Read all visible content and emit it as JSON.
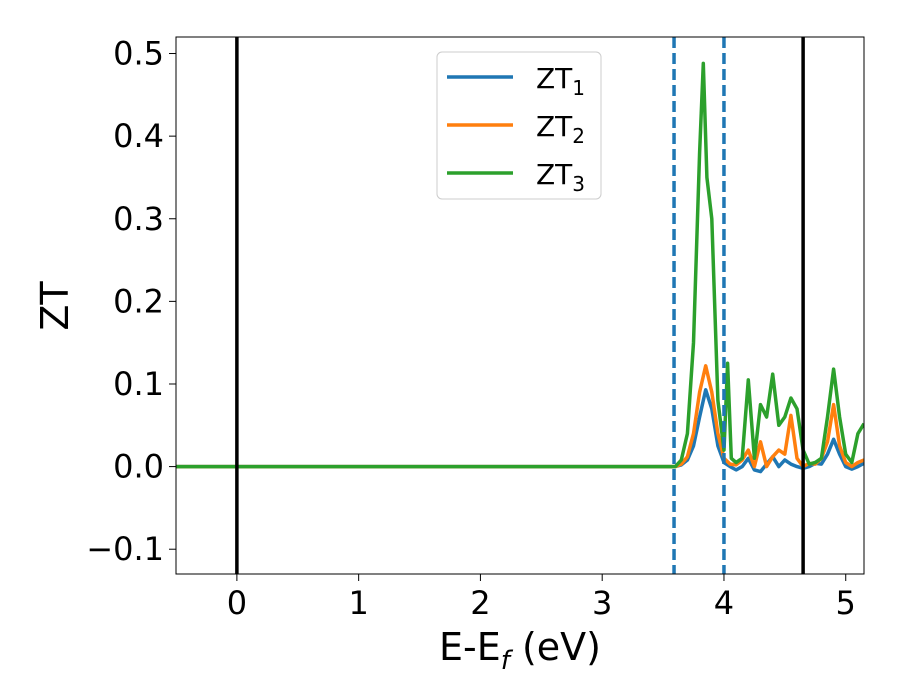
{
  "chart_data": {
    "type": "line",
    "title": "",
    "xlabel": "E-E",
    "xlabel_sub": "f",
    "xlabel_unit": " (eV)",
    "ylabel": "ZT",
    "xlim": [
      -0.5,
      5.15
    ],
    "ylim": [
      -0.13,
      0.52
    ],
    "xticks": [
      0,
      1,
      2,
      3,
      4,
      5
    ],
    "yticks": [
      -0.1,
      0.0,
      0.1,
      0.2,
      0.3,
      0.4,
      0.5
    ],
    "ytick_labels": [
      "−0.1",
      "0.0",
      "0.1",
      "0.2",
      "0.3",
      "0.4",
      "0.5"
    ],
    "grid": false,
    "legend_position": "top-center",
    "vlines": [
      {
        "x": 0.0,
        "color": "#000000",
        "style": "solid"
      },
      {
        "x": 4.65,
        "color": "#000000",
        "style": "solid"
      },
      {
        "x": 3.59,
        "color": "#1f77b4",
        "style": "dashed"
      },
      {
        "x": 4.0,
        "color": "#1f77b4",
        "style": "dashed"
      }
    ],
    "series": [
      {
        "name": "ZT",
        "name_sub": "1",
        "color": "#1f77b4",
        "x": [
          -0.5,
          3.5,
          3.6,
          3.65,
          3.7,
          3.75,
          3.8,
          3.85,
          3.9,
          3.95,
          4.0,
          4.05,
          4.1,
          4.15,
          4.2,
          4.25,
          4.3,
          4.35,
          4.4,
          4.45,
          4.5,
          4.55,
          4.6,
          4.65,
          4.7,
          4.75,
          4.8,
          4.85,
          4.9,
          4.95,
          5.0,
          5.05,
          5.1,
          5.15
        ],
        "y": [
          0.0,
          0.0,
          0.0,
          0.002,
          0.008,
          0.025,
          0.06,
          0.093,
          0.07,
          0.025,
          0.005,
          0.0,
          -0.004,
          0.0,
          0.01,
          -0.004,
          -0.006,
          0.003,
          0.012,
          0.0,
          0.008,
          0.003,
          0.0,
          -0.002,
          0.0,
          0.004,
          0.003,
          0.015,
          0.033,
          0.015,
          0.0,
          -0.003,
          0.0,
          0.004
        ]
      },
      {
        "name": "ZT",
        "name_sub": "2",
        "color": "#ff7f0e",
        "x": [
          -0.5,
          3.5,
          3.6,
          3.65,
          3.7,
          3.75,
          3.8,
          3.85,
          3.9,
          3.95,
          4.0,
          4.05,
          4.1,
          4.15,
          4.2,
          4.25,
          4.3,
          4.35,
          4.4,
          4.45,
          4.5,
          4.55,
          4.6,
          4.65,
          4.7,
          4.75,
          4.8,
          4.85,
          4.9,
          4.95,
          5.0,
          5.05,
          5.1,
          5.15
        ],
        "y": [
          0.0,
          0.0,
          0.0,
          0.003,
          0.012,
          0.04,
          0.09,
          0.122,
          0.09,
          0.04,
          0.01,
          0.003,
          0.002,
          0.008,
          0.02,
          0.0,
          0.03,
          0.0,
          0.012,
          0.02,
          0.015,
          0.062,
          0.01,
          0.0,
          0.004,
          0.003,
          0.01,
          0.03,
          0.075,
          0.025,
          0.005,
          0.0,
          0.005,
          0.008
        ]
      },
      {
        "name": "ZT",
        "name_sub": "3",
        "color": "#2ca02c",
        "x": [
          -0.5,
          3.5,
          3.6,
          3.65,
          3.7,
          3.75,
          3.8,
          3.83,
          3.86,
          3.9,
          3.95,
          4.0,
          4.03,
          4.06,
          4.1,
          4.15,
          4.2,
          4.25,
          4.3,
          4.35,
          4.4,
          4.45,
          4.5,
          4.55,
          4.6,
          4.65,
          4.7,
          4.75,
          4.8,
          4.85,
          4.9,
          4.95,
          5.0,
          5.05,
          5.1,
          5.15
        ],
        "y": [
          0.0,
          0.0,
          0.0,
          0.008,
          0.04,
          0.15,
          0.38,
          0.488,
          0.35,
          0.3,
          0.08,
          0.02,
          0.125,
          0.01,
          0.005,
          0.01,
          0.105,
          0.01,
          0.075,
          0.06,
          0.112,
          0.05,
          0.06,
          0.083,
          0.07,
          0.02,
          0.003,
          0.005,
          0.01,
          0.06,
          0.118,
          0.06,
          0.015,
          0.005,
          0.04,
          0.052
        ]
      }
    ]
  }
}
